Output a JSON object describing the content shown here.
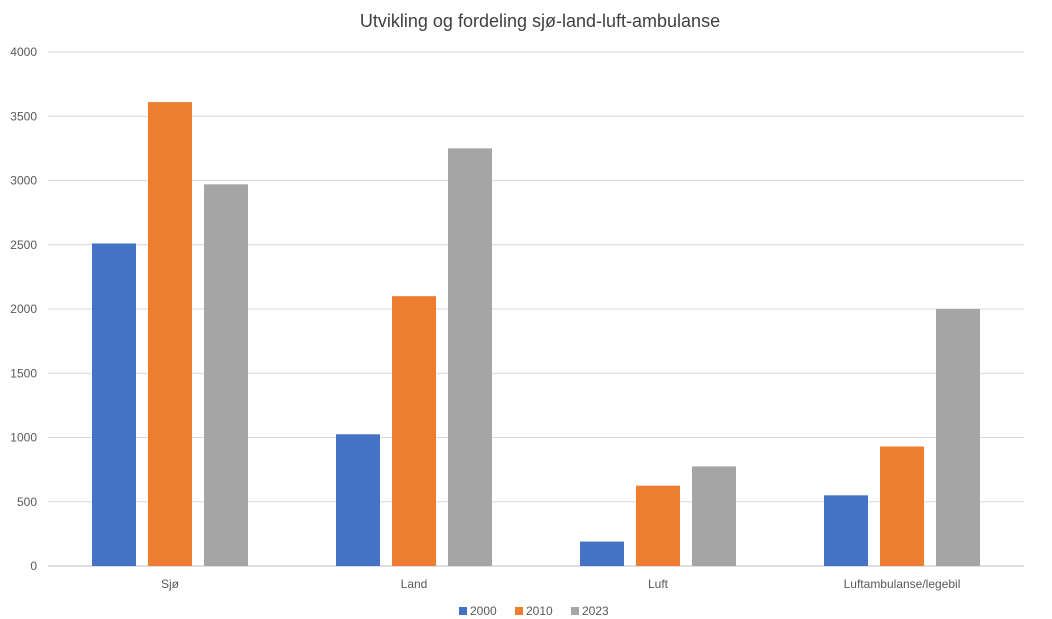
{
  "chart_data": {
    "type": "bar",
    "title": "Utvikling og fordeling sjø-land-luft-ambulanse",
    "xlabel": "",
    "ylabel": "",
    "ylim": [
      0,
      4000
    ],
    "yticks": [
      0,
      500,
      1000,
      1500,
      2000,
      2500,
      3000,
      3500,
      4000
    ],
    "grid": true,
    "legend_position": "bottom",
    "categories": [
      "Sjø",
      "Land",
      "Luft",
      "Luftambulanse/legebil"
    ],
    "series": [
      {
        "name": "2000",
        "color": "#4472c4",
        "values": [
          2510,
          1025,
          190,
          550
        ]
      },
      {
        "name": "2010",
        "color": "#ed7d31",
        "values": [
          3610,
          2100,
          625,
          930
        ]
      },
      {
        "name": "2023",
        "color": "#a5a5a5",
        "values": [
          2970,
          3250,
          775,
          2000
        ]
      }
    ]
  }
}
